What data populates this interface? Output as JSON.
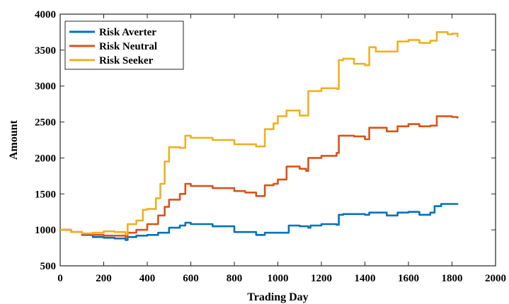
{
  "chart_data": {
    "type": "line",
    "title": "",
    "xlabel": "Trading Day",
    "ylabel": "Amount",
    "xlim": [
      0,
      2000
    ],
    "ylim": [
      500,
      4000
    ],
    "xticks": [
      0,
      200,
      400,
      600,
      800,
      1000,
      1200,
      1400,
      1600,
      1800,
      2000
    ],
    "yticks": [
      500,
      1000,
      1500,
      2000,
      2500,
      3000,
      3500,
      4000
    ],
    "grid": false,
    "legend_position": "top-left",
    "series": [
      {
        "name": "Risk Averter",
        "color": "#0072BD",
        "points": [
          [
            0,
            1000
          ],
          [
            50,
            970
          ],
          [
            100,
            930
          ],
          [
            150,
            900
          ],
          [
            200,
            890
          ],
          [
            250,
            880
          ],
          [
            300,
            860
          ],
          [
            310,
            900
          ],
          [
            350,
            920
          ],
          [
            400,
            930
          ],
          [
            450,
            960
          ],
          [
            500,
            1030
          ],
          [
            550,
            1060
          ],
          [
            575,
            1100
          ],
          [
            600,
            1080
          ],
          [
            700,
            1050
          ],
          [
            800,
            970
          ],
          [
            900,
            930
          ],
          [
            940,
            960
          ],
          [
            1000,
            960
          ],
          [
            1050,
            1060
          ],
          [
            1100,
            1050
          ],
          [
            1140,
            1030
          ],
          [
            1150,
            1060
          ],
          [
            1200,
            1080
          ],
          [
            1270,
            1070
          ],
          [
            1280,
            1210
          ],
          [
            1300,
            1220
          ],
          [
            1400,
            1210
          ],
          [
            1420,
            1240
          ],
          [
            1500,
            1200
          ],
          [
            1550,
            1240
          ],
          [
            1600,
            1250
          ],
          [
            1650,
            1210
          ],
          [
            1700,
            1240
          ],
          [
            1720,
            1330
          ],
          [
            1750,
            1360
          ],
          [
            1800,
            1360
          ],
          [
            1825,
            1350
          ]
        ]
      },
      {
        "name": "Risk Neutral",
        "color": "#D95319",
        "points": [
          [
            0,
            1000
          ],
          [
            50,
            970
          ],
          [
            100,
            940
          ],
          [
            150,
            930
          ],
          [
            200,
            920
          ],
          [
            250,
            920
          ],
          [
            300,
            900
          ],
          [
            310,
            960
          ],
          [
            350,
            1000
          ],
          [
            400,
            1080
          ],
          [
            450,
            1200
          ],
          [
            480,
            1320
          ],
          [
            500,
            1420
          ],
          [
            550,
            1500
          ],
          [
            575,
            1640
          ],
          [
            600,
            1610
          ],
          [
            700,
            1580
          ],
          [
            800,
            1540
          ],
          [
            850,
            1520
          ],
          [
            900,
            1470
          ],
          [
            940,
            1620
          ],
          [
            980,
            1640
          ],
          [
            1000,
            1700
          ],
          [
            1040,
            1880
          ],
          [
            1100,
            1850
          ],
          [
            1130,
            1820
          ],
          [
            1140,
            2000
          ],
          [
            1200,
            2030
          ],
          [
            1270,
            2070
          ],
          [
            1280,
            2310
          ],
          [
            1350,
            2300
          ],
          [
            1400,
            2260
          ],
          [
            1420,
            2420
          ],
          [
            1500,
            2370
          ],
          [
            1550,
            2440
          ],
          [
            1600,
            2470
          ],
          [
            1650,
            2440
          ],
          [
            1700,
            2450
          ],
          [
            1730,
            2580
          ],
          [
            1800,
            2570
          ],
          [
            1825,
            2550
          ]
        ]
      },
      {
        "name": "Risk Seeker",
        "color": "#EDB120",
        "points": [
          [
            0,
            1000
          ],
          [
            50,
            970
          ],
          [
            100,
            950
          ],
          [
            150,
            960
          ],
          [
            200,
            980
          ],
          [
            250,
            970
          ],
          [
            300,
            940
          ],
          [
            310,
            1080
          ],
          [
            350,
            1130
          ],
          [
            380,
            1280
          ],
          [
            400,
            1290
          ],
          [
            440,
            1440
          ],
          [
            460,
            1640
          ],
          [
            480,
            1950
          ],
          [
            500,
            2150
          ],
          [
            550,
            2140
          ],
          [
            575,
            2310
          ],
          [
            600,
            2280
          ],
          [
            700,
            2250
          ],
          [
            800,
            2190
          ],
          [
            850,
            2190
          ],
          [
            900,
            2160
          ],
          [
            940,
            2400
          ],
          [
            980,
            2480
          ],
          [
            1000,
            2580
          ],
          [
            1040,
            2660
          ],
          [
            1100,
            2590
          ],
          [
            1140,
            2930
          ],
          [
            1200,
            2970
          ],
          [
            1270,
            2960
          ],
          [
            1280,
            3360
          ],
          [
            1300,
            3380
          ],
          [
            1350,
            3310
          ],
          [
            1400,
            3290
          ],
          [
            1420,
            3540
          ],
          [
            1450,
            3480
          ],
          [
            1500,
            3480
          ],
          [
            1550,
            3620
          ],
          [
            1600,
            3640
          ],
          [
            1650,
            3600
          ],
          [
            1700,
            3630
          ],
          [
            1730,
            3750
          ],
          [
            1780,
            3720
          ],
          [
            1800,
            3730
          ],
          [
            1825,
            3680
          ]
        ]
      }
    ]
  }
}
